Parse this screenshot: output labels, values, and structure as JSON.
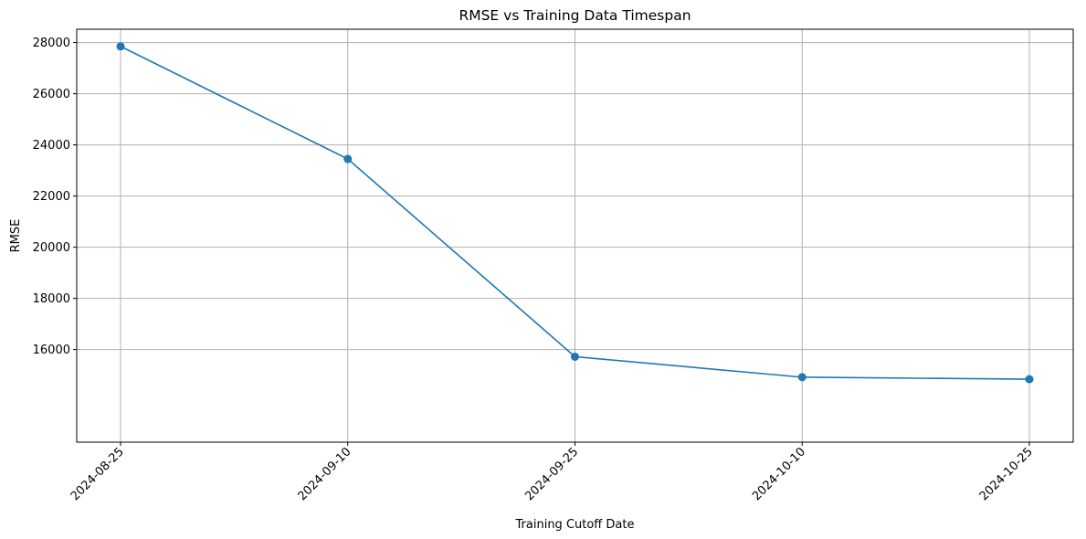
{
  "chart_data": {
    "type": "line",
    "title": "RMSE vs Training Data Timespan",
    "xlabel": "Training Cutoff Date",
    "ylabel": "RMSE",
    "categories": [
      "2024-08-25",
      "2024-09-10",
      "2024-09-25",
      "2024-10-10",
      "2024-10-25"
    ],
    "series": [
      {
        "name": "RMSE",
        "values": [
          27850,
          23450,
          15720,
          14920,
          14840
        ],
        "color": "#1f77b4",
        "marker": "circle"
      }
    ],
    "ylim": [
      12380,
      28520
    ],
    "yticks": [
      16000,
      18000,
      20000,
      22000,
      24000,
      26000,
      28000
    ],
    "grid": true,
    "x_tick_rotation": 45
  }
}
